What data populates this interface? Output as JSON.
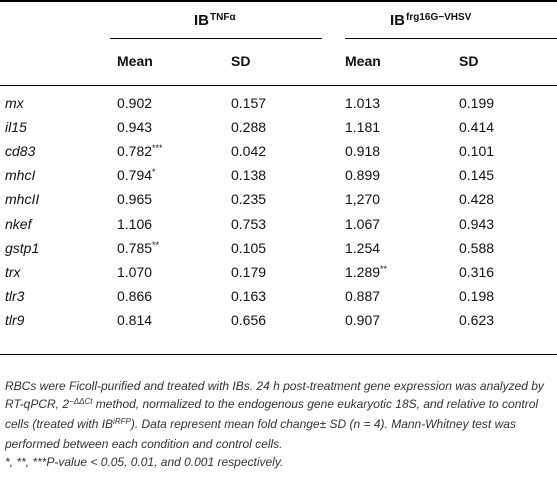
{
  "table": {
    "groups": [
      {
        "label": "IB",
        "sup": "TNFα"
      },
      {
        "label": "IB",
        "sup": "frg16G−VHSV"
      }
    ],
    "columns": {
      "mean": "Mean",
      "sd": "SD"
    },
    "rows": [
      {
        "gene": "mx",
        "tnf_mean": "0.902",
        "tnf_mean_sig": "",
        "tnf_sd": "0.157",
        "vhsv_mean": "1.013",
        "vhsv_mean_sig": "",
        "vhsv_sd": "0.199"
      },
      {
        "gene": "il15",
        "tnf_mean": "0.943",
        "tnf_mean_sig": "",
        "tnf_sd": "0.288",
        "vhsv_mean": "1.181",
        "vhsv_mean_sig": "",
        "vhsv_sd": "0.414"
      },
      {
        "gene": "cd83",
        "tnf_mean": "0.782",
        "tnf_mean_sig": "***",
        "tnf_sd": "0.042",
        "vhsv_mean": "0.918",
        "vhsv_mean_sig": "",
        "vhsv_sd": "0.101"
      },
      {
        "gene": "mhcI",
        "tnf_mean": "0.794",
        "tnf_mean_sig": "*",
        "tnf_sd": "0.138",
        "vhsv_mean": "0.899",
        "vhsv_mean_sig": "",
        "vhsv_sd": "0.145"
      },
      {
        "gene": "mhcII",
        "tnf_mean": "0.965",
        "tnf_mean_sig": "",
        "tnf_sd": "0.235",
        "vhsv_mean": "1,270",
        "vhsv_mean_sig": "",
        "vhsv_sd": "0.428"
      },
      {
        "gene": "nkef",
        "tnf_mean": "1.106",
        "tnf_mean_sig": "",
        "tnf_sd": "0.753",
        "vhsv_mean": "1.067",
        "vhsv_mean_sig": "",
        "vhsv_sd": "0.943"
      },
      {
        "gene": "gstp1",
        "tnf_mean": "0.785",
        "tnf_mean_sig": "**",
        "tnf_sd": "0.105",
        "vhsv_mean": "1.254",
        "vhsv_mean_sig": "",
        "vhsv_sd": "0.588"
      },
      {
        "gene": "trx",
        "tnf_mean": "1.070",
        "tnf_mean_sig": "",
        "tnf_sd": "0.179",
        "vhsv_mean": "1.289",
        "vhsv_mean_sig": "**",
        "vhsv_sd": "0.316"
      },
      {
        "gene": "tlr3",
        "tnf_mean": "0.866",
        "tnf_mean_sig": "",
        "tnf_sd": "0.163",
        "vhsv_mean": "0.887",
        "vhsv_mean_sig": "",
        "vhsv_sd": "0.198"
      },
      {
        "gene": "tlr9",
        "tnf_mean": "0.814",
        "tnf_mean_sig": "",
        "tnf_sd": "0.656",
        "vhsv_mean": "0.907",
        "vhsv_mean_sig": "",
        "vhsv_sd": "0.623"
      }
    ]
  },
  "footnote": {
    "p1": "RBCs were Ficoll-purified and treated with IBs. 24 h post-treatment gene expression was analyzed by RT-qPCR, 2",
    "p1_sup": "−ΔΔCt",
    "p2": " method, normalized to the endogenous gene eukaryotic 18S, and relative to control cells (treated with IB",
    "p2_sup": "iRFP",
    "p3": "). Data represent mean fold change± SD (n = 4). Mann-Whitney test was performed between each condition and control cells.",
    "p4": "*, **, ***P-value < 0.05, 0.01, and 0.001 respectively."
  }
}
